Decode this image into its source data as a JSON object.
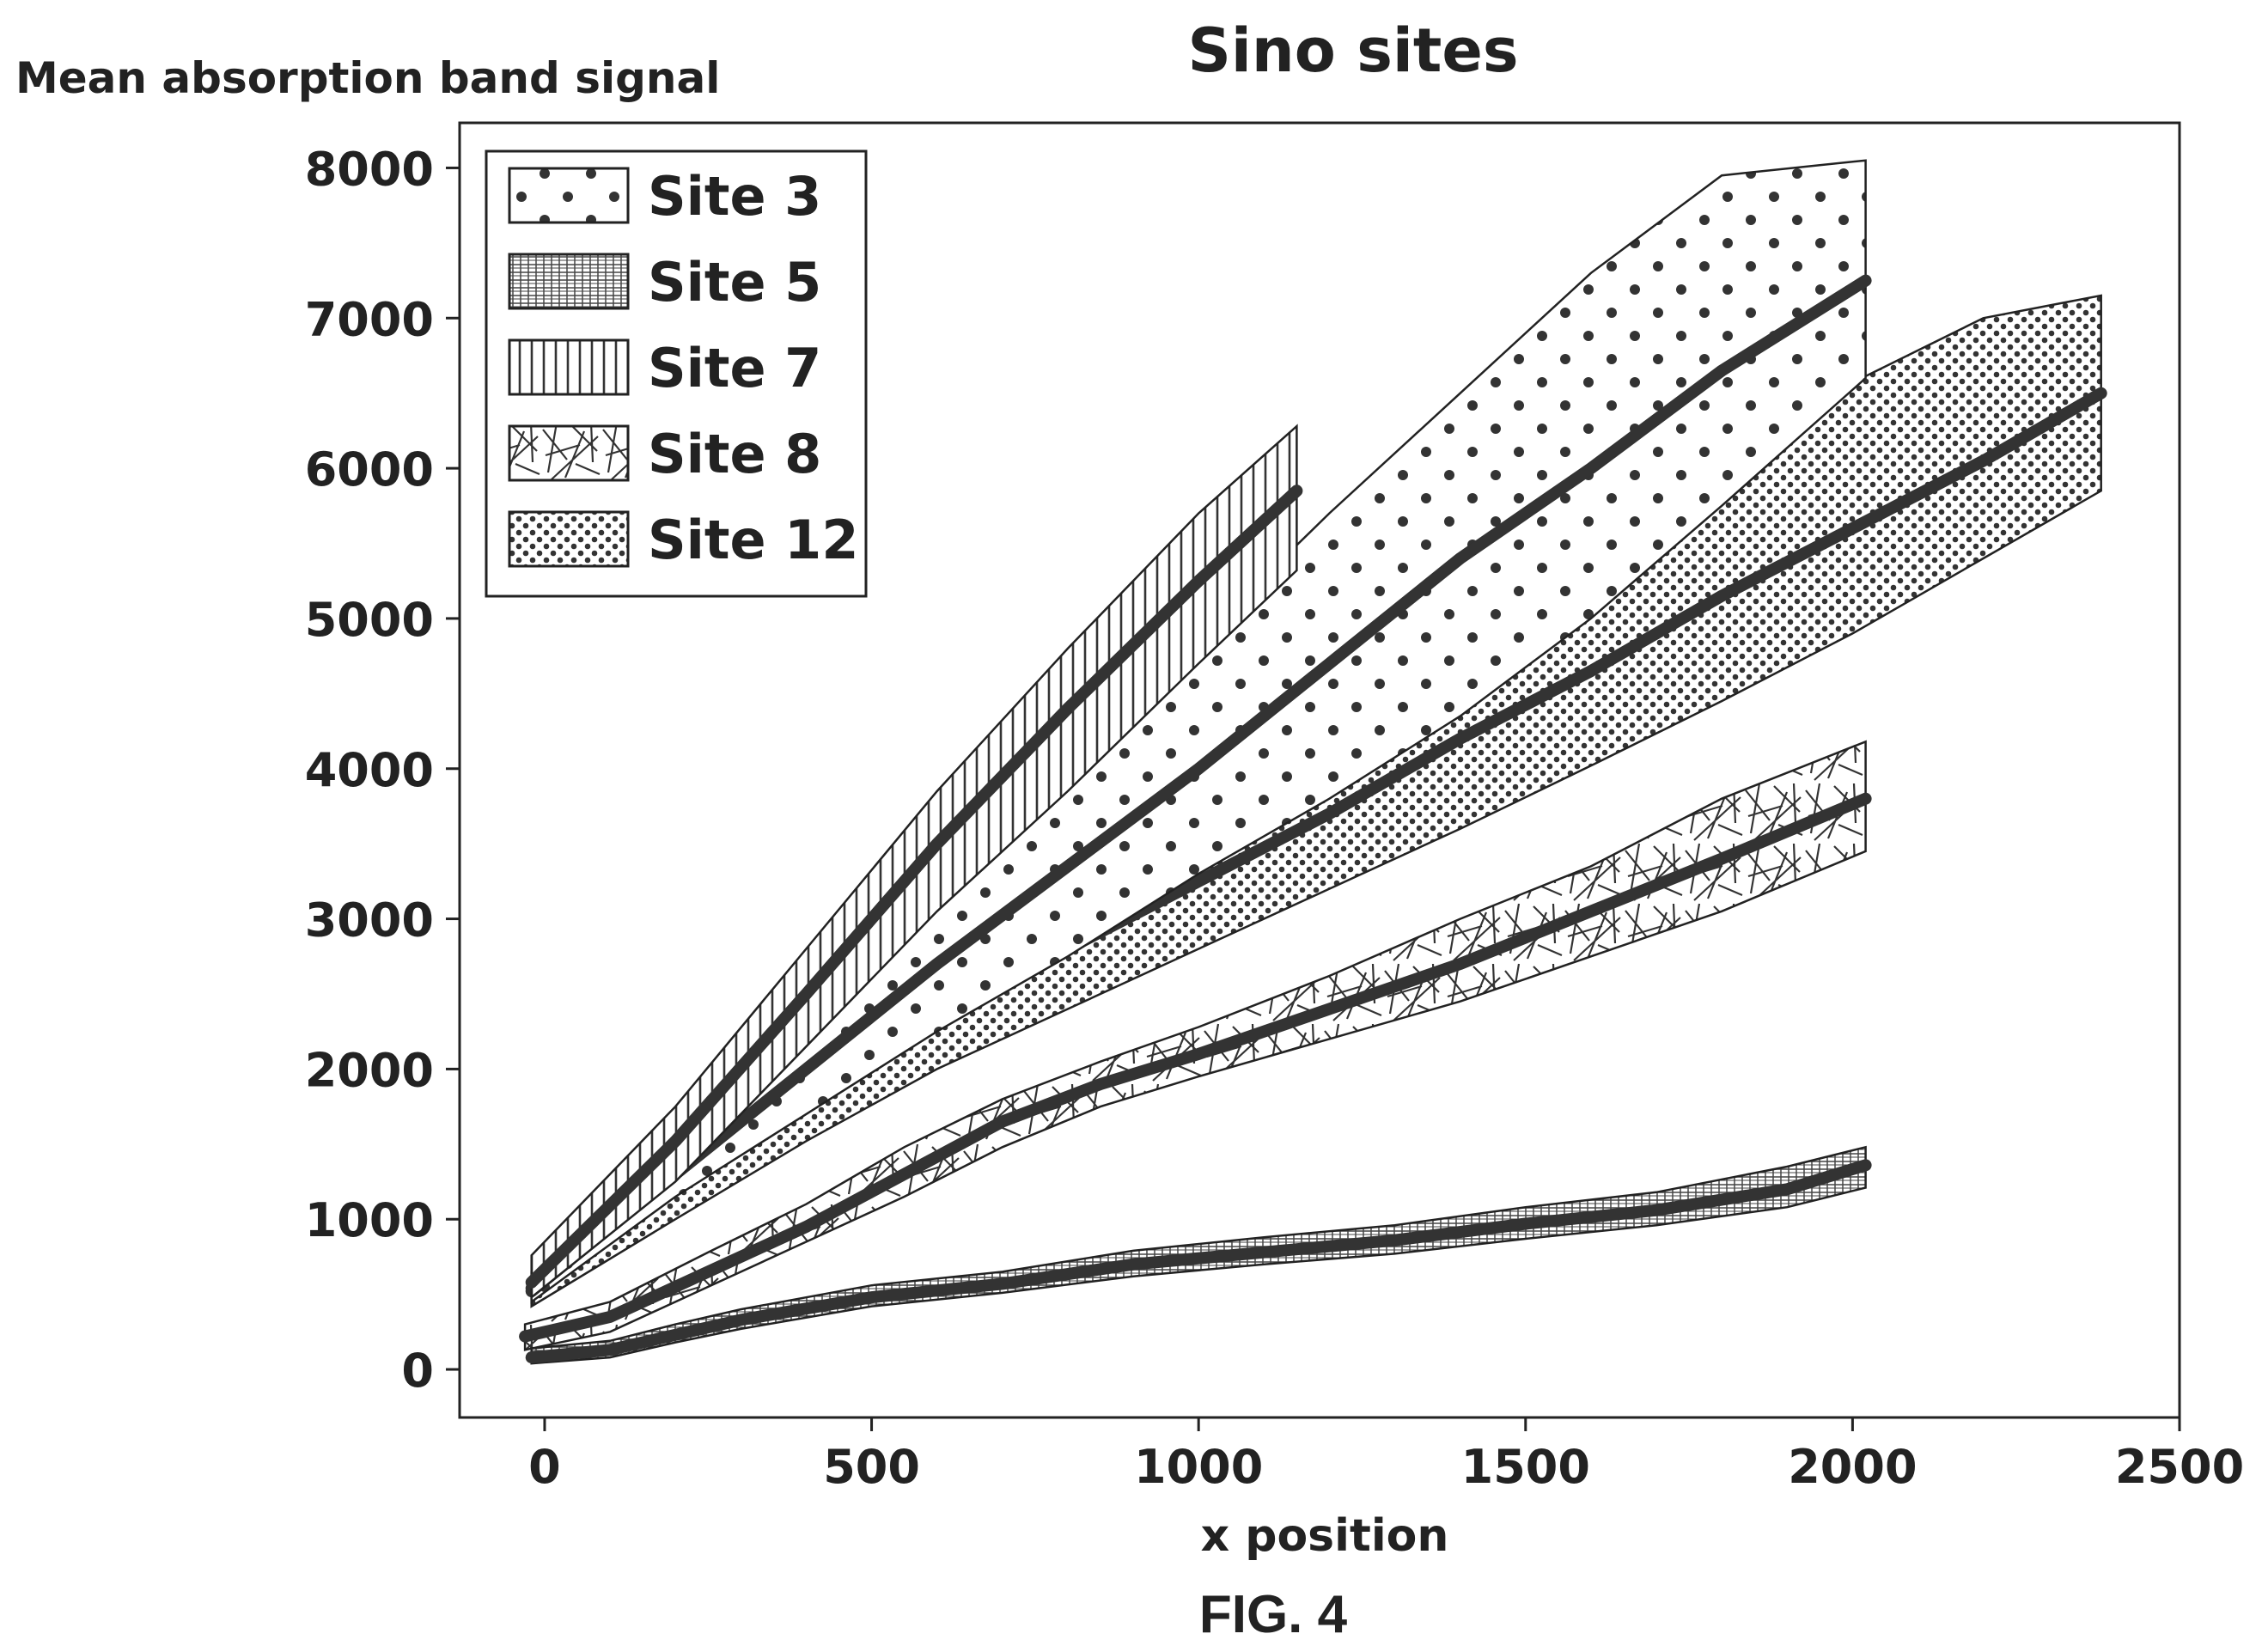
{
  "figure_caption": "FIG. 4",
  "chart_data": {
    "type": "area",
    "title": "Sino sites",
    "xlabel": "x position",
    "ylabel": "Mean absorption band signal",
    "xlim": [
      -130,
      2500
    ],
    "ylim": [
      -320,
      8300
    ],
    "xticks": [
      0,
      500,
      1000,
      1500,
      2000,
      2500
    ],
    "xtick_labels": [
      "0",
      "500",
      "1000",
      "1500",
      "2000",
      "2500"
    ],
    "yticks": [
      0,
      1000,
      2000,
      3000,
      4000,
      5000,
      6000,
      7000,
      8000
    ],
    "ytick_labels": [
      "0",
      "1000",
      "2000",
      "3000",
      "4000",
      "5000",
      "6000",
      "7000",
      "8000"
    ],
    "grid": false,
    "legend_position": "top-left",
    "series": [
      {
        "name": "Site 3",
        "pattern": "large-dots",
        "x": [
          -20,
          200,
          400,
          600,
          800,
          1000,
          1200,
          1400,
          1600,
          1800,
          2020
        ],
        "mean": [
          520,
          1300,
          2000,
          2700,
          3350,
          4000,
          4700,
          5400,
          6000,
          6650,
          7250
        ],
        "upper": [
          580,
          1480,
          2350,
          3200,
          4050,
          4850,
          5700,
          6500,
          7300,
          7950,
          8050
        ],
        "lower": [
          450,
          1150,
          1700,
          2250,
          2750,
          3300,
          3800,
          4350,
          5000,
          5750,
          6600
        ]
      },
      {
        "name": "Site 5",
        "pattern": "crosshatch-grid",
        "x": [
          -20,
          100,
          200,
          300,
          500,
          700,
          900,
          1100,
          1300,
          1500,
          1700,
          1900,
          2020
        ],
        "mean": [
          80,
          130,
          230,
          330,
          480,
          570,
          700,
          780,
          860,
          970,
          1060,
          1200,
          1360
        ],
        "upper": [
          140,
          190,
          300,
          400,
          560,
          650,
          790,
          880,
          960,
          1080,
          1180,
          1350,
          1480
        ],
        "lower": [
          40,
          80,
          180,
          270,
          420,
          510,
          620,
          700,
          770,
          870,
          960,
          1080,
          1210
        ]
      },
      {
        "name": "Site 7",
        "pattern": "vertical-stripes",
        "x": [
          -20,
          200,
          400,
          600,
          800,
          1000,
          1150
        ],
        "mean": [
          580,
          1520,
          2500,
          3500,
          4400,
          5250,
          5850
        ],
        "upper": [
          760,
          1750,
          2800,
          3850,
          4800,
          5700,
          6280
        ],
        "lower": [
          480,
          1250,
          2150,
          3050,
          3850,
          4700,
          5320
        ]
      },
      {
        "name": "Site 8",
        "pattern": "scribble",
        "x": [
          -30,
          100,
          250,
          400,
          550,
          700,
          850,
          1000,
          1200,
          1400,
          1600,
          1800,
          2020
        ],
        "mean": [
          220,
          350,
          650,
          950,
          1300,
          1650,
          1900,
          2100,
          2400,
          2700,
          3050,
          3400,
          3800
        ],
        "upper": [
          300,
          450,
          780,
          1100,
          1480,
          1800,
          2050,
          2280,
          2620,
          3000,
          3350,
          3800,
          4180
        ],
        "lower": [
          130,
          250,
          550,
          850,
          1150,
          1480,
          1750,
          1950,
          2200,
          2450,
          2750,
          3050,
          3450
        ]
      },
      {
        "name": "Site 12",
        "pattern": "small-dots",
        "x": [
          -20,
          200,
          400,
          600,
          800,
          1000,
          1200,
          1400,
          1600,
          1800,
          2000,
          2200,
          2380
        ],
        "mean": [
          540,
          1200,
          1800,
          2350,
          2800,
          3250,
          3700,
          4200,
          4650,
          5150,
          5600,
          6050,
          6500
        ],
        "upper": [
          650,
          1420,
          2130,
          2800,
          3400,
          3980,
          4550,
          5080,
          5600,
          6100,
          6570,
          7000,
          7150
        ],
        "lower": [
          420,
          1000,
          1520,
          2000,
          2400,
          2800,
          3200,
          3600,
          4020,
          4450,
          4900,
          5400,
          5850
        ]
      }
    ]
  }
}
